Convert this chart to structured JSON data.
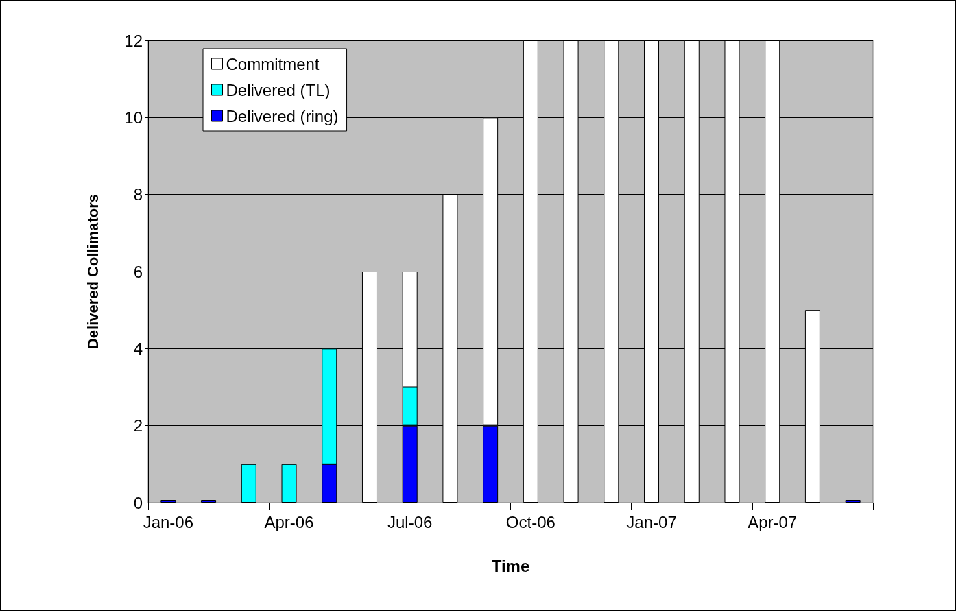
{
  "chart_data": {
    "type": "bar",
    "stacked": true,
    "xlabel": "Time",
    "ylabel": "Delivered Collimators",
    "categories": [
      "Jan-06",
      null,
      null,
      "Apr-06",
      null,
      null,
      "Jul-06",
      null,
      null,
      "Oct-06",
      null,
      null,
      "Jan-07",
      null,
      null,
      "Apr-07",
      null,
      null
    ],
    "series": [
      {
        "name": "Delivered (ring)",
        "color": "#0000ff",
        "values": [
          0,
          0,
          null,
          null,
          1,
          null,
          2,
          null,
          2,
          null,
          null,
          null,
          null,
          null,
          null,
          null,
          null,
          0
        ]
      },
      {
        "name": "Delivered (TL)",
        "color": "#00ffff",
        "values": [
          null,
          null,
          1,
          1,
          3,
          null,
          1,
          null,
          null,
          null,
          null,
          null,
          null,
          null,
          null,
          null,
          null,
          null
        ]
      },
      {
        "name": "Commitment",
        "color": "#ffffff",
        "values": [
          null,
          null,
          null,
          null,
          null,
          6,
          3,
          8,
          8,
          12,
          12,
          12,
          12,
          12,
          12,
          12,
          5,
          null
        ]
      }
    ],
    "ylim": [
      0,
      12
    ],
    "yticks": [
      0,
      2,
      4,
      6,
      8,
      10,
      12
    ],
    "grid": "y",
    "legend": "top left"
  }
}
